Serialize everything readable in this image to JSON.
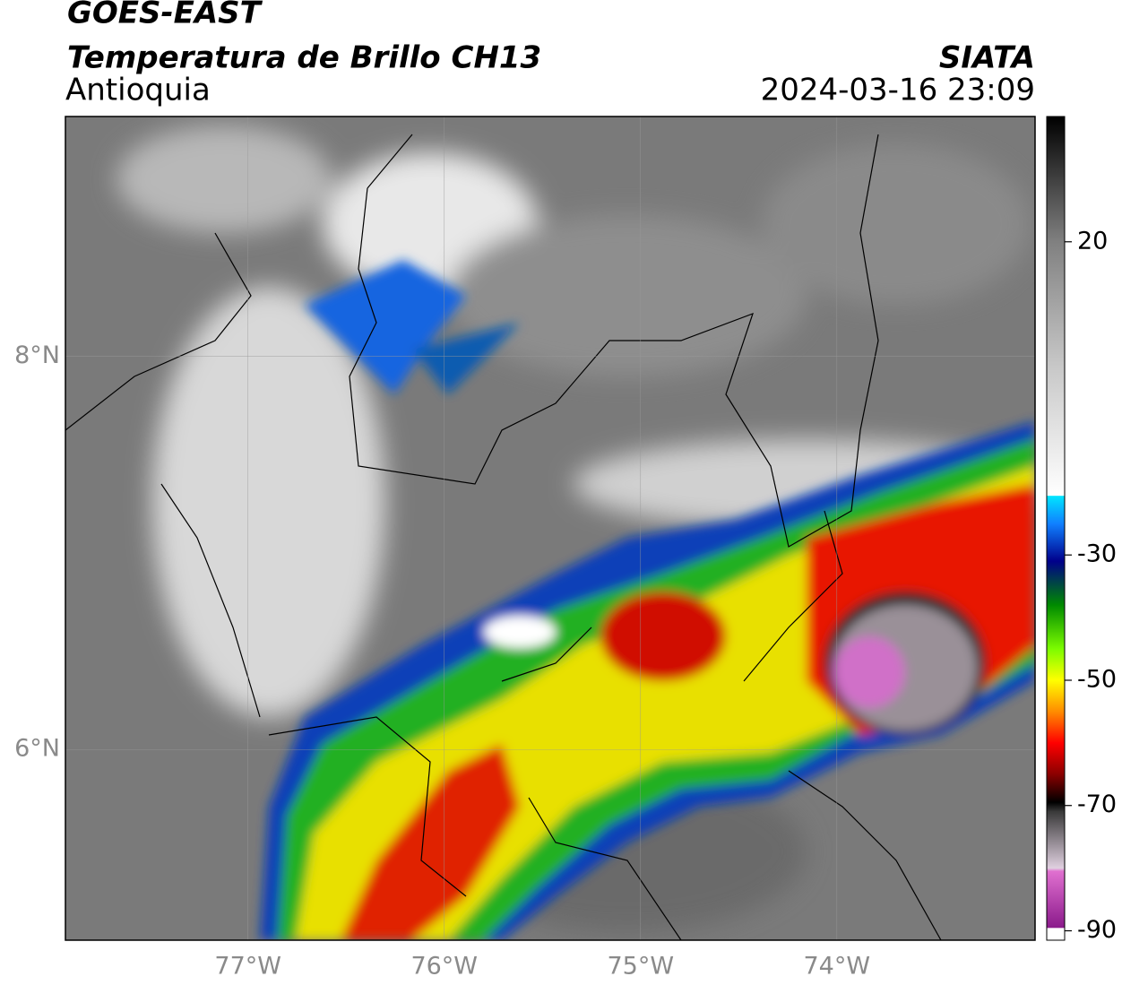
{
  "header": {
    "title": "GOES-EAST",
    "subtitle": "Temperatura de Brillo CH13",
    "region": "Antioquia",
    "source": "SIATA",
    "datetime": "2024-03-16 23:09"
  },
  "map": {
    "lonlim": [
      -77.93,
      -72.99
    ],
    "latlim": [
      5.03,
      9.22
    ],
    "lonticks": [
      {
        "value": -77,
        "label": "77°W"
      },
      {
        "value": -76,
        "label": "76°W"
      },
      {
        "value": -75,
        "label": "75°W"
      },
      {
        "value": -74,
        "label": "74°W"
      }
    ],
    "latticks": [
      {
        "value": 8,
        "label": "8°N"
      },
      {
        "value": 6,
        "label": "6°N"
      }
    ],
    "grid": true
  },
  "colorbar": {
    "lim": [
      -91.5,
      40
    ],
    "ticks": [
      20,
      -30,
      -50,
      -70,
      -90
    ],
    "stops": [
      {
        "value": -91.5,
        "color": "#ffffff"
      },
      {
        "value": -89.6,
        "color": "#ffffff"
      },
      {
        "value": -89.5,
        "color": "#8b1a8b"
      },
      {
        "value": -80.5,
        "color": "#e070d0"
      },
      {
        "value": -80,
        "color": "#e0d0e0"
      },
      {
        "value": -71,
        "color": "#3a3a3a"
      },
      {
        "value": -69.5,
        "color": "#000000"
      },
      {
        "value": -65,
        "color": "#8b0000"
      },
      {
        "value": -60,
        "color": "#ff0000"
      },
      {
        "value": -55,
        "color": "#ff8c00"
      },
      {
        "value": -50,
        "color": "#ffff00"
      },
      {
        "value": -45,
        "color": "#7cfc00"
      },
      {
        "value": -38,
        "color": "#008a00"
      },
      {
        "value": -31,
        "color": "#00008b"
      },
      {
        "value": -25,
        "color": "#1080ff"
      },
      {
        "value": -20.6,
        "color": "#00e5ff"
      },
      {
        "value": -20.5,
        "color": "#ffffff"
      },
      {
        "value": 0,
        "color": "#c8c8c8"
      },
      {
        "value": 20,
        "color": "#808080"
      },
      {
        "value": 40,
        "color": "#000000"
      }
    ]
  }
}
